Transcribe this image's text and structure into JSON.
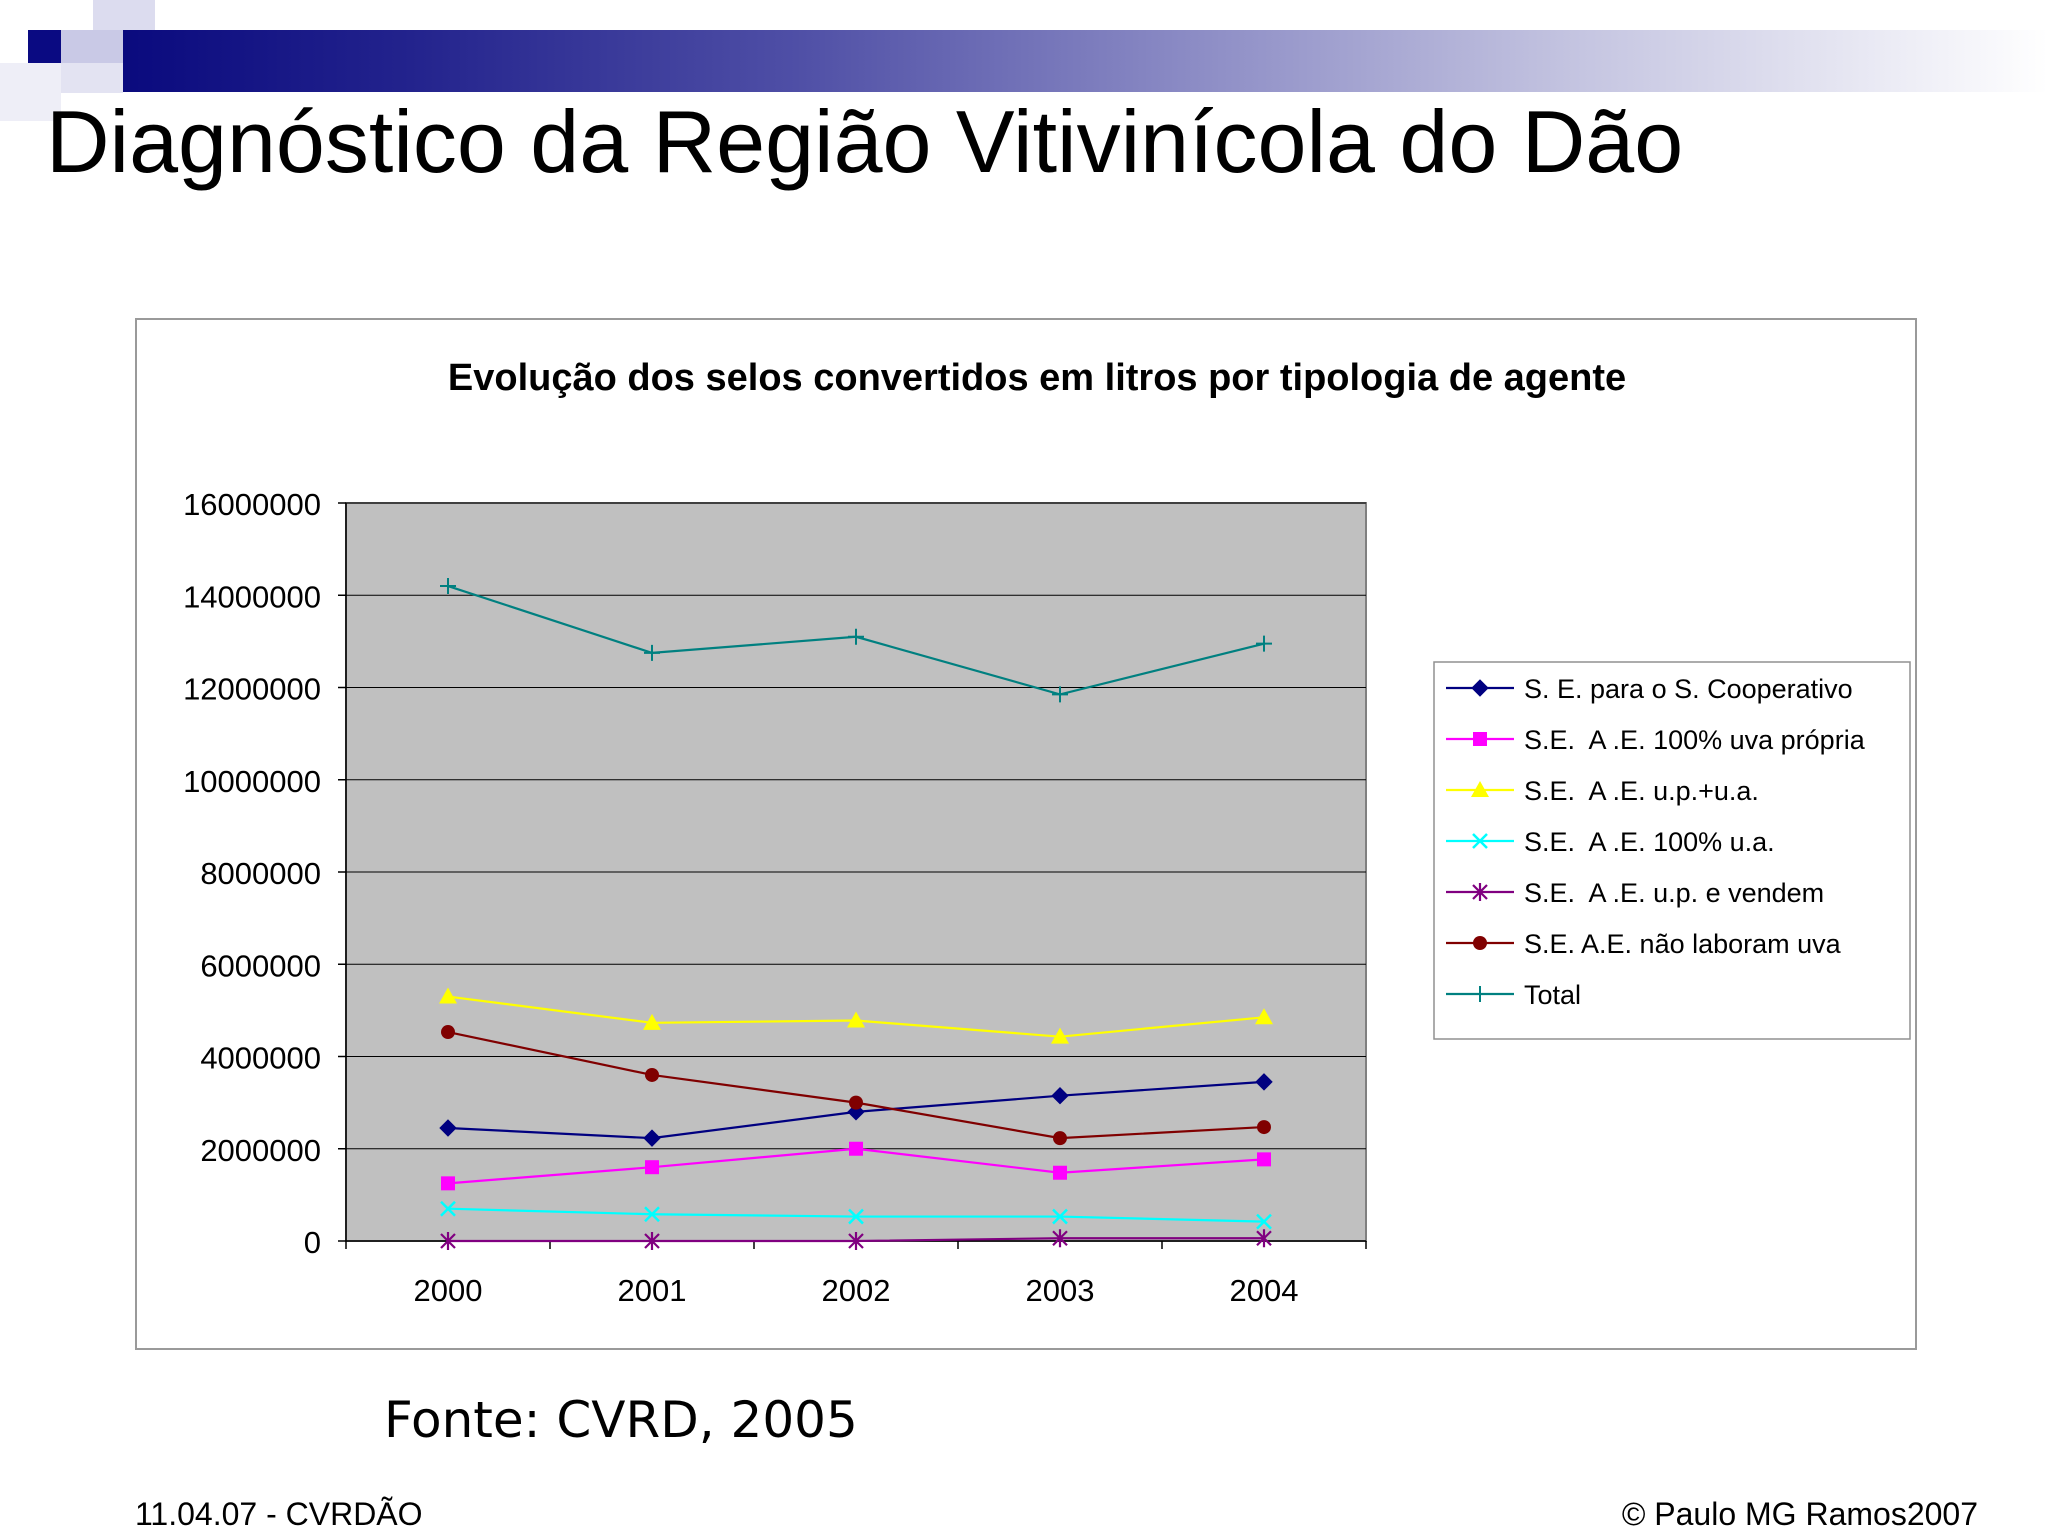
{
  "slide": {
    "title": "Diagnóstico da Região Vitivinícola do Dão",
    "source": "Fonte: CVRD, 2005",
    "footer_left": "11.04.07 - CVRDÃO",
    "footer_right": "© Paulo MG Ramos2007"
  },
  "chart_data": {
    "type": "line",
    "title": "Evolução dos selos convertidos em litros por tipologia de agente",
    "xlabel": "",
    "ylabel": "",
    "categories": [
      "2000",
      "2001",
      "2002",
      "2003",
      "2004"
    ],
    "ylim": [
      0,
      16000000
    ],
    "yticks": [
      "0",
      "2000000",
      "4000000",
      "6000000",
      "8000000",
      "10000000",
      "12000000",
      "14000000",
      "16000000"
    ],
    "grid": "horizontal",
    "plot_background": "#c0c0c0",
    "legend_position": "right",
    "series": [
      {
        "name": "S. E. para o S. Cooperativo",
        "color": "#000080",
        "marker": "diamond",
        "values": [
          2450000,
          2230000,
          2800000,
          3150000,
          3450000
        ]
      },
      {
        "name": "S.E.  A .E. 100% uva própria",
        "color": "#ff00ff",
        "marker": "square",
        "values": [
          1250000,
          1600000,
          2000000,
          1480000,
          1770000
        ]
      },
      {
        "name": "S.E.  A .E. u.p.+u.a.",
        "color": "#ffff00",
        "marker": "triangle",
        "values": [
          5300000,
          4730000,
          4780000,
          4430000,
          4850000
        ]
      },
      {
        "name": "S.E.  A .E. 100% u.a.",
        "color": "#00ffff",
        "marker": "x",
        "values": [
          700000,
          580000,
          530000,
          530000,
          420000
        ]
      },
      {
        "name": "S.E.  A .E. u.p. e vendem",
        "color": "#800080",
        "marker": "asterisk",
        "values": [
          0,
          0,
          0,
          60000,
          60000
        ]
      },
      {
        "name": "S.E. A.E. não laboram uva",
        "color": "#800000",
        "marker": "circle",
        "values": [
          4530000,
          3600000,
          3000000,
          2230000,
          2470000
        ]
      },
      {
        "name": "Total",
        "color": "#008080",
        "marker": "plus",
        "values": [
          14200000,
          12750000,
          13100000,
          11850000,
          12950000
        ]
      }
    ]
  }
}
